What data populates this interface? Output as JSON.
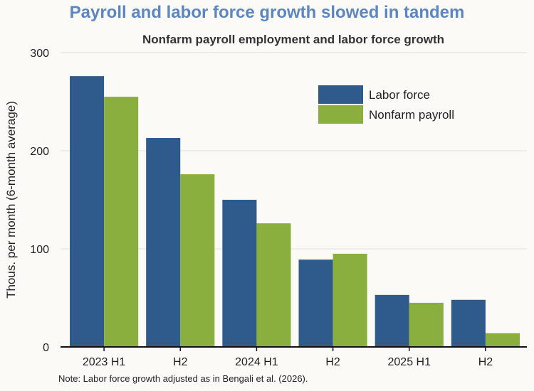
{
  "chart_data": {
    "type": "bar",
    "title": "Payroll and labor force growth slowed in tandem",
    "subtitle": "Nonfarm payroll employment and labor force growth",
    "ylabel": "Thous. per month (6-month average)",
    "xlabel": "",
    "note": "Note: Labor force growth adjusted as in Bengali et al. (2026).",
    "categories": [
      "2023 H1",
      "H2",
      "2024 H1",
      "H2",
      "2025 H1",
      "H2"
    ],
    "ylim": [
      0,
      300
    ],
    "yticks": [
      0,
      100,
      200,
      300
    ],
    "grid": true,
    "legend_position": "top-right",
    "series": [
      {
        "name": "Labor force",
        "color": "#2e5b8c",
        "values": [
          276,
          213,
          150,
          89,
          53,
          48
        ]
      },
      {
        "name": "Nonfarm payroll",
        "color": "#8aaf3e",
        "values": [
          255,
          176,
          126,
          95,
          45,
          14
        ]
      }
    ]
  }
}
